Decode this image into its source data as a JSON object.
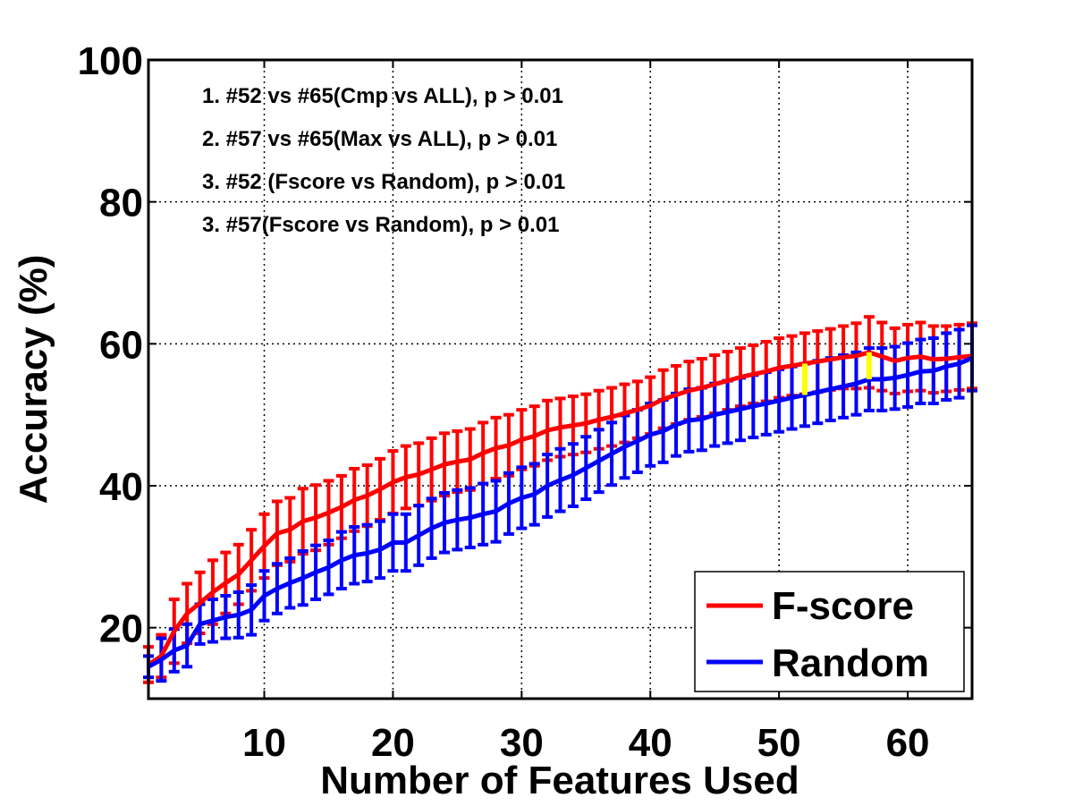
{
  "chart_data": {
    "type": "line",
    "xlabel": "Number of Features Used",
    "ylabel": "Accuracy (%)",
    "xlim": [
      1,
      65
    ],
    "ylim": [
      10,
      100
    ],
    "xticks": [
      10,
      20,
      30,
      40,
      50,
      60
    ],
    "yticks": [
      20,
      40,
      60,
      80,
      100
    ],
    "x_tick_labels": [
      "10",
      "20",
      "30",
      "40",
      "50",
      "60"
    ],
    "y_tick_labels": [
      "20",
      "40",
      "60",
      "80",
      "100"
    ],
    "grid": true,
    "legend_position": "bottom-right",
    "annotations": [
      "1. #52 vs #65(Cmp vs ALL), p > 0.01",
      "2. #57 vs #65(Max vs ALL), p > 0.01",
      "3. #52 (Fscore vs Random), p > 0.01",
      "3. #57(Fscore vs Random), p > 0.01"
    ],
    "highlight_x": [
      52,
      57
    ],
    "highlight_color": "#ffff00",
    "x": [
      1,
      2,
      3,
      4,
      5,
      6,
      7,
      8,
      9,
      10,
      11,
      12,
      13,
      14,
      15,
      16,
      17,
      18,
      19,
      20,
      21,
      22,
      23,
      24,
      25,
      26,
      27,
      28,
      29,
      30,
      31,
      32,
      33,
      34,
      35,
      36,
      37,
      38,
      39,
      40,
      41,
      42,
      43,
      44,
      45,
      46,
      47,
      48,
      49,
      50,
      51,
      52,
      53,
      54,
      55,
      56,
      57,
      58,
      59,
      60,
      61,
      62,
      63,
      64,
      65
    ],
    "series": [
      {
        "name": "F-score",
        "color": "#ff0000",
        "values": [
          14.8,
          16.0,
          19.5,
          22.0,
          23.5,
          25.0,
          26.3,
          27.5,
          29.5,
          31.5,
          33.3,
          33.8,
          35.0,
          35.5,
          36.2,
          37.0,
          38.0,
          38.6,
          39.5,
          40.5,
          41.2,
          41.6,
          42.3,
          43.0,
          43.4,
          43.7,
          44.6,
          45.3,
          45.7,
          46.5,
          47.0,
          47.8,
          48.2,
          48.5,
          48.8,
          49.3,
          49.7,
          50.2,
          50.7,
          51.3,
          52.2,
          52.8,
          53.4,
          53.8,
          54.3,
          54.8,
          55.3,
          55.7,
          56.1,
          56.6,
          56.9,
          57.2,
          57.5,
          57.8,
          58.1,
          58.3,
          58.8,
          58.2,
          57.6,
          58.0,
          58.2,
          57.8,
          57.9,
          58.1,
          58.3
        ],
        "error": [
          2.5,
          3.0,
          4.5,
          4.2,
          4.3,
          4.5,
          4.3,
          4.2,
          4.3,
          4.5,
          4.5,
          4.5,
          4.6,
          4.6,
          4.5,
          4.4,
          4.4,
          4.3,
          4.3,
          4.4,
          4.4,
          4.4,
          4.4,
          4.4,
          4.3,
          4.3,
          4.3,
          4.3,
          4.3,
          4.2,
          4.2,
          4.2,
          4.1,
          4.1,
          4.1,
          4.1,
          4.1,
          4.1,
          4.0,
          4.0,
          4.1,
          4.1,
          4.1,
          4.1,
          4.1,
          4.1,
          4.1,
          4.1,
          4.2,
          4.2,
          4.2,
          4.3,
          4.3,
          4.3,
          4.4,
          4.6,
          5.0,
          4.8,
          4.6,
          4.7,
          4.8,
          4.7,
          4.6,
          4.6,
          4.6
        ]
      },
      {
        "name": "Random",
        "color": "#0000ff",
        "values": [
          14.5,
          15.5,
          16.8,
          17.5,
          20.5,
          21.0,
          21.5,
          21.8,
          22.5,
          24.5,
          25.5,
          26.3,
          27.0,
          27.8,
          28.5,
          29.5,
          30.2,
          30.5,
          31.0,
          32.0,
          32.0,
          33.0,
          34.0,
          34.8,
          35.2,
          35.5,
          36.0,
          36.4,
          37.5,
          38.3,
          38.8,
          40.0,
          40.8,
          41.5,
          42.5,
          43.5,
          44.5,
          45.5,
          46.3,
          47.2,
          47.7,
          48.6,
          49.2,
          49.4,
          50.0,
          50.4,
          50.8,
          51.2,
          51.6,
          52.0,
          52.4,
          52.8,
          53.2,
          53.6,
          54.0,
          54.4,
          55.0,
          55.0,
          55.2,
          55.6,
          56.1,
          56.2,
          56.8,
          57.2,
          58.0
        ],
        "error": [
          1.5,
          3.0,
          3.0,
          3.0,
          2.8,
          3.0,
          3.0,
          3.2,
          3.5,
          3.5,
          3.5,
          3.5,
          3.8,
          3.8,
          3.8,
          4.0,
          4.0,
          4.0,
          4.0,
          4.0,
          4.0,
          4.2,
          4.2,
          4.2,
          4.2,
          4.2,
          4.3,
          4.3,
          4.3,
          4.3,
          4.3,
          4.4,
          4.4,
          4.4,
          4.4,
          4.4,
          4.4,
          4.4,
          4.4,
          4.4,
          4.4,
          4.4,
          4.4,
          4.4,
          4.4,
          4.4,
          4.4,
          4.4,
          4.4,
          4.4,
          4.4,
          4.4,
          4.4,
          4.4,
          4.4,
          4.4,
          4.4,
          4.4,
          4.4,
          4.5,
          4.5,
          4.6,
          4.7,
          4.8,
          4.6
        ]
      }
    ]
  }
}
